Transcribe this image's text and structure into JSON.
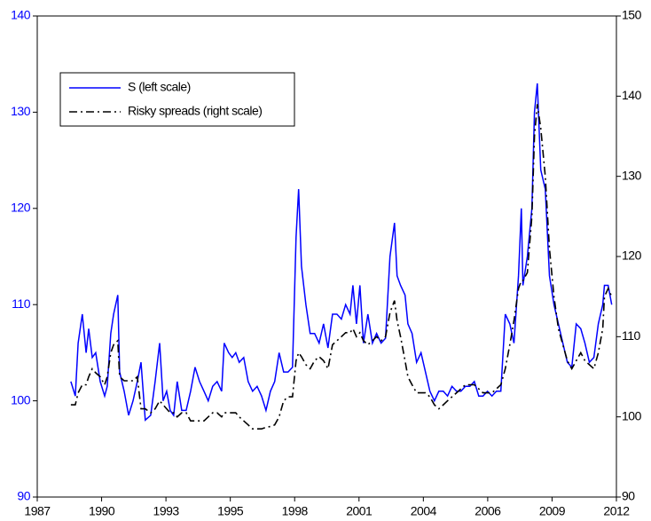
{
  "chart_data": {
    "type": "line",
    "x": [
      1988.93,
      1989.12,
      1989.24,
      1989.42,
      1989.58,
      1989.69,
      1989.84,
      1989.99,
      1990.18,
      1990.37,
      1990.48,
      1990.63,
      1990.75,
      1990.93,
      1991.01,
      1991.2,
      1991.39,
      1991.58,
      1991.76,
      1991.92,
      1992.1,
      1992.33,
      1992.52,
      1992.71,
      1992.86,
      1993.01,
      1993.16,
      1993.31,
      1993.46,
      1993.65,
      1993.84,
      1994.03,
      1994.22,
      1994.41,
      1994.6,
      1994.78,
      1994.97,
      1995.16,
      1995.35,
      1995.46,
      1995.65,
      1995.8,
      1995.95,
      1996.1,
      1996.29,
      1996.48,
      1996.67,
      1996.86,
      1997.05,
      1997.24,
      1997.43,
      1997.61,
      1997.8,
      1997.99,
      1998.18,
      1998.37,
      1998.52,
      1998.63,
      1998.75,
      1998.94,
      1999.12,
      1999.31,
      1999.5,
      1999.69,
      1999.88,
      2000.07,
      2000.26,
      2000.45,
      2000.63,
      2000.82,
      2000.94,
      2001.09,
      2001.24,
      2001.39,
      2001.58,
      2001.77,
      2001.95,
      2002.14,
      2002.33,
      2002.52,
      2002.71,
      2002.82,
      2002.97,
      2003.16,
      2003.28,
      2003.46,
      2003.65,
      2003.84,
      2004.03,
      2004.22,
      2004.41,
      2004.6,
      2004.79,
      2004.97,
      2005.16,
      2005.35,
      2005.54,
      2005.73,
      2005.92,
      2006.11,
      2006.3,
      2006.48,
      2006.67,
      2006.86,
      2007.05,
      2007.24,
      2007.43,
      2007.62,
      2007.8,
      2007.99,
      2008.11,
      2008.18,
      2008.37,
      2008.56,
      2008.67,
      2008.79,
      2008.94,
      2009.13,
      2009.31,
      2009.5,
      2009.69,
      2009.88,
      2010.07,
      2010.26,
      2010.45,
      2010.64,
      2010.82,
      2011.01,
      2011.2,
      2011.39,
      2011.58,
      2011.65,
      2011.81,
      2011.96
    ],
    "series": [
      {
        "name": "S (left scale)",
        "color": "#0000ff",
        "values": [
          102,
          100.5,
          106,
          109,
          105,
          107.5,
          104.5,
          105,
          102,
          100.5,
          101.5,
          107,
          109,
          111,
          103,
          101,
          98.5,
          100,
          102,
          104,
          98,
          98.5,
          102,
          106,
          100,
          101,
          99,
          98.5,
          102,
          99,
          99,
          101,
          103.5,
          102,
          101,
          100,
          101.5,
          102,
          101,
          106,
          105,
          104.5,
          105,
          104,
          104.5,
          102,
          101,
          101.5,
          100.5,
          99,
          101,
          102,
          105,
          103,
          103,
          103.5,
          117,
          122,
          114,
          110,
          107,
          107,
          106,
          108,
          105.5,
          109,
          109,
          108.5,
          110,
          109,
          112,
          108,
          112,
          106,
          109,
          106,
          107,
          106,
          106.5,
          115,
          118.5,
          113,
          112,
          111,
          108,
          107,
          104,
          105,
          103,
          101,
          100,
          101,
          101,
          100.5,
          101.5,
          101,
          101,
          101.5,
          101.5,
          102,
          100.5,
          100.5,
          101,
          100.5,
          101,
          101,
          109,
          108,
          106,
          113,
          120,
          112,
          115,
          120,
          130,
          133,
          124,
          122,
          113,
          110,
          108,
          106,
          104,
          103.5,
          108,
          107.5,
          106,
          104,
          104.5,
          108,
          110,
          112,
          112,
          110
        ]
      },
      {
        "name": "Risky spreads (right scale)",
        "color": "#000000",
        "axis": "y2",
        "values": [
          101.5,
          101.5,
          103,
          104,
          104,
          105,
          106,
          105.5,
          105,
          104,
          105,
          108,
          109,
          109.5,
          105,
          104.5,
          104.5,
          104.5,
          105,
          101,
          101,
          100.5,
          101,
          102,
          101.5,
          101,
          100.5,
          100.5,
          100,
          100.5,
          100.5,
          99.5,
          99.5,
          99.5,
          99.5,
          100,
          100.5,
          100.5,
          100,
          100.5,
          100.5,
          100.5,
          100.5,
          100,
          99.5,
          99,
          98.5,
          98.5,
          98.5,
          98.7,
          98.8,
          99,
          100,
          102,
          102.5,
          102.5,
          107,
          108,
          107.5,
          106.5,
          106,
          107,
          107.5,
          107,
          106,
          109,
          109.5,
          110,
          110.5,
          110.5,
          111,
          110,
          110.5,
          109.5,
          109,
          109.5,
          110,
          109.5,
          110,
          113,
          114.5,
          112,
          110,
          107,
          105,
          104,
          103,
          103,
          103,
          102.5,
          101.5,
          101,
          101.5,
          102,
          102.5,
          103,
          103.5,
          104,
          104,
          104,
          103.5,
          103,
          103,
          103,
          103.5,
          104,
          106,
          109,
          112,
          116,
          117,
          117,
          118,
          125,
          135,
          139,
          136,
          130,
          121,
          115,
          111,
          109,
          107,
          106,
          107,
          108,
          107,
          106.5,
          106,
          108,
          111,
          115,
          116,
          115
        ]
      }
    ],
    "xlim": [
      1987.5,
      2012.16
    ],
    "xticks": [
      {
        "value": 1987.5,
        "label": "1987"
      },
      {
        "value": 1990.24,
        "label": "1990"
      },
      {
        "value": 1992.98,
        "label": "1993"
      },
      {
        "value": 1995.72,
        "label": "1995"
      },
      {
        "value": 1998.46,
        "label": "1998"
      },
      {
        "value": 2001.2,
        "label": "2001"
      },
      {
        "value": 2003.94,
        "label": "2004"
      },
      {
        "value": 2006.68,
        "label": "2006"
      },
      {
        "value": 2009.42,
        "label": "2009"
      },
      {
        "value": 2012.16,
        "label": "2012"
      }
    ],
    "ylim": [
      90,
      140
    ],
    "yticks": [
      90,
      100,
      110,
      120,
      130,
      140
    ],
    "y2lim": [
      90,
      150
    ],
    "y2ticks": [
      90,
      100,
      110,
      120,
      130,
      140,
      150
    ],
    "ytick_color": "#0000ff",
    "legend": "upper left"
  }
}
